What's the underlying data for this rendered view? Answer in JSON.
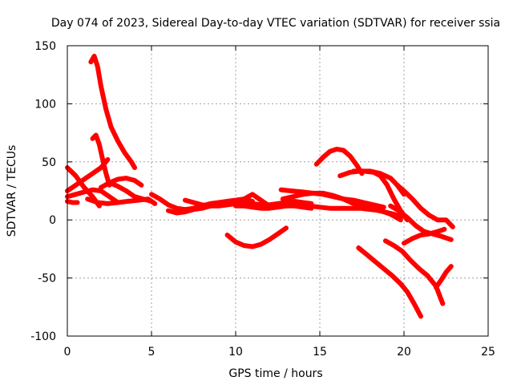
{
  "chart_data": {
    "type": "line",
    "title": "Day 074 of 2023, Sidereal Day-to-day VTEC variation (SDTVAR) for receiver ssia",
    "xlabel": "GPS time / hours",
    "ylabel": "SDTVAR / TECUs",
    "xlim": [
      0,
      25
    ],
    "ylim": [
      -100,
      150
    ],
    "xticks": [
      "0",
      "5",
      "10",
      "15",
      "20",
      "25"
    ],
    "yticks": [
      "150",
      "100",
      "50",
      "0",
      "-50",
      "-100"
    ],
    "grid": true,
    "color": "#ff0000",
    "series": [
      {
        "name": "s1",
        "x": [
          1.4,
          1.6,
          1.8,
          2.0,
          2.3,
          2.6,
          3.0,
          3.4,
          3.8,
          4.0
        ],
        "y": [
          136,
          141,
          132,
          115,
          95,
          80,
          68,
          58,
          50,
          45
        ]
      },
      {
        "name": "s2",
        "x": [
          1.5,
          1.7,
          1.9,
          2.1,
          2.3,
          2.5
        ],
        "y": [
          70,
          73,
          65,
          52,
          40,
          30
        ]
      },
      {
        "name": "s3",
        "x": [
          0.0,
          0.5,
          1.0,
          1.5,
          1.9
        ],
        "y": [
          45,
          38,
          28,
          20,
          12
        ]
      },
      {
        "name": "s4",
        "x": [
          0.0,
          0.5,
          1.0,
          1.5,
          2.0,
          2.4
        ],
        "y": [
          25,
          30,
          35,
          40,
          45,
          52
        ]
      },
      {
        "name": "s5",
        "x": [
          0.0,
          0.5,
          1.0,
          1.5,
          2.0,
          2.5,
          3.0
        ],
        "y": [
          20,
          22,
          24,
          26,
          25,
          20,
          15
        ]
      },
      {
        "name": "s6",
        "x": [
          0.0,
          0.3,
          0.6
        ],
        "y": [
          16,
          15,
          15
        ]
      },
      {
        "name": "s7",
        "x": [
          1.2,
          1.8,
          2.4,
          3.0,
          3.6,
          4.2,
          4.8,
          5.2
        ],
        "y": [
          18,
          15,
          14,
          15,
          16,
          17,
          18,
          14
        ]
      },
      {
        "name": "s8",
        "x": [
          2.0,
          2.5,
          3.0,
          3.5,
          4.0,
          4.4
        ],
        "y": [
          28,
          32,
          35,
          36,
          34,
          30
        ]
      },
      {
        "name": "s9",
        "x": [
          2.5,
          3.0,
          3.5,
          4.0,
          4.5,
          5.0
        ],
        "y": [
          32,
          29,
          25,
          20,
          18,
          16
        ]
      },
      {
        "name": "s10",
        "x": [
          5.0,
          5.5,
          6.0,
          6.5,
          7.0,
          7.5,
          8.0,
          8.5,
          9.0,
          9.5,
          10.0,
          10.5,
          11.0
        ],
        "y": [
          22,
          18,
          13,
          10,
          9,
          10,
          12,
          14,
          15,
          16,
          17,
          18,
          16
        ]
      },
      {
        "name": "s11",
        "x": [
          6.0,
          6.5,
          7.0,
          7.5,
          8.0,
          8.5,
          9.0,
          9.5,
          10.0,
          10.5,
          11.0,
          11.5,
          12.0
        ],
        "y": [
          8,
          6,
          7,
          9,
          10,
          12,
          13,
          14,
          15,
          18,
          22,
          17,
          12
        ]
      },
      {
        "name": "s12",
        "x": [
          7.0,
          7.5,
          8.0,
          8.5,
          9.0,
          9.5,
          10.0,
          10.5,
          11.0,
          11.5,
          12.0,
          12.5,
          13.0,
          13.5,
          14.0,
          14.5
        ],
        "y": [
          17,
          15,
          13,
          12,
          12,
          13,
          14,
          15,
          14,
          13,
          13,
          14,
          15,
          16,
          15,
          14
        ]
      },
      {
        "name": "s13",
        "x": [
          9.5,
          10.0,
          10.5,
          11.0,
          11.5,
          12.0,
          12.5,
          13.0
        ],
        "y": [
          -13,
          -19,
          -22,
          -23,
          -21,
          -17,
          -12,
          -7
        ]
      },
      {
        "name": "s14",
        "x": [
          10.0,
          10.5,
          11.0,
          11.5,
          12.0,
          12.5,
          13.0,
          13.5,
          14.0,
          14.5
        ],
        "y": [
          12,
          12,
          11,
          10,
          10,
          11,
          12,
          12,
          11,
          10
        ]
      },
      {
        "name": "s15",
        "x": [
          12.7,
          13.3,
          14.0,
          14.6,
          15.2,
          15.8,
          16.4,
          17.0,
          17.6,
          18.2,
          18.8
        ],
        "y": [
          26,
          25,
          24,
          23,
          22,
          20,
          18,
          17,
          15,
          13,
          11
        ]
      },
      {
        "name": "s16",
        "x": [
          12.8,
          13.4,
          14.0,
          14.6,
          15.2,
          15.8,
          16.4,
          17.0,
          17.6,
          18.2,
          18.8,
          19.4,
          19.9
        ],
        "y": [
          18,
          20,
          22,
          23,
          23,
          21,
          18,
          14,
          11,
          9,
          7,
          5,
          3
        ]
      },
      {
        "name": "s17",
        "x": [
          14.4,
          15.0,
          15.6,
          16.2,
          16.8,
          17.4,
          18.0,
          18.6,
          19.2,
          19.8
        ],
        "y": [
          12,
          11,
          10,
          10,
          10,
          10,
          9,
          8,
          5,
          0
        ]
      },
      {
        "name": "s18",
        "x": [
          14.8,
          15.2,
          15.6,
          16.0,
          16.4,
          16.8,
          17.2,
          17.5
        ],
        "y": [
          48,
          54,
          59,
          61,
          60,
          55,
          47,
          40
        ]
      },
      {
        "name": "s19",
        "x": [
          16.2,
          16.8,
          17.4,
          18.0,
          18.6,
          19.2,
          19.6,
          20.0
        ],
        "y": [
          38,
          41,
          42,
          42,
          40,
          36,
          30,
          22
        ]
      },
      {
        "name": "s20",
        "x": [
          17.0,
          17.6,
          18.2,
          18.6,
          19.0,
          19.4,
          19.8,
          20.2
        ],
        "y": [
          42,
          42,
          41,
          38,
          30,
          18,
          8,
          0
        ]
      },
      {
        "name": "s21",
        "x": [
          19.6,
          20.0,
          20.5,
          21.0,
          21.5,
          22.0,
          22.5,
          22.9
        ],
        "y": [
          30,
          25,
          18,
          10,
          4,
          0,
          0,
          -6
        ]
      },
      {
        "name": "s22",
        "x": [
          19.2,
          19.7,
          20.2,
          20.7,
          21.2,
          21.7,
          22.2,
          22.8
        ],
        "y": [
          12,
          8,
          2,
          -5,
          -10,
          -12,
          -14,
          -17
        ]
      },
      {
        "name": "s23",
        "x": [
          20.0,
          20.5,
          21.0,
          21.5,
          22.0,
          22.4
        ],
        "y": [
          -20,
          -16,
          -13,
          -12,
          -10,
          -8
        ]
      },
      {
        "name": "s24",
        "x": [
          17.3,
          17.8,
          18.3,
          18.8,
          19.3,
          19.8,
          20.2,
          20.6,
          21.0
        ],
        "y": [
          -24,
          -30,
          -36,
          -42,
          -48,
          -55,
          -62,
          -72,
          -83
        ]
      },
      {
        "name": "s25",
        "x": [
          18.9,
          19.4,
          19.9,
          20.4,
          20.9,
          21.4,
          21.9,
          22.3
        ],
        "y": [
          -18,
          -22,
          -27,
          -35,
          -42,
          -48,
          -57,
          -72
        ]
      },
      {
        "name": "s26",
        "x": [
          21.9,
          22.2,
          22.5,
          22.8
        ],
        "y": [
          -58,
          -52,
          -45,
          -40
        ]
      }
    ]
  }
}
